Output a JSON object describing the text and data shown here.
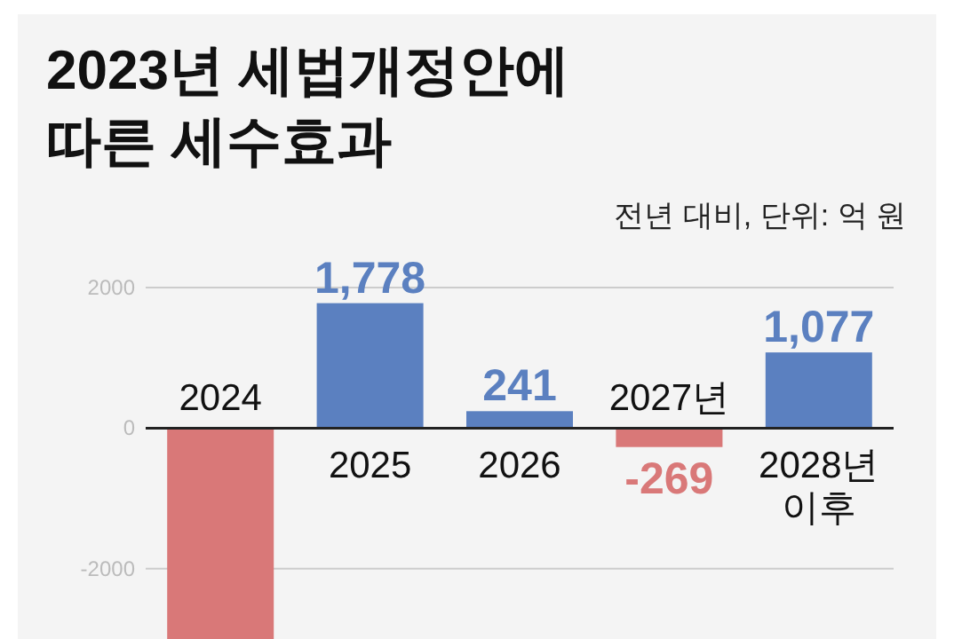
{
  "chart_data": {
    "type": "bar",
    "title": "2023년 세법개정안에\n따른 세수효과",
    "subtitle": "전년 대비, 단위: 억 원",
    "categories": [
      "2024",
      "2025",
      "2026",
      "2027년",
      "2028년\n이후"
    ],
    "values": [
      -3000,
      1778,
      241,
      -269,
      1077
    ],
    "colors": [
      "#d97878",
      "#5b80c0",
      "#5b80c0",
      "#d97878",
      "#5b80c0"
    ],
    "value_labels": [
      null,
      "1,778",
      "241",
      "-269",
      "1,077"
    ],
    "ylim": [
      -3000,
      2000
    ],
    "yticks": [
      -2000,
      0,
      2000
    ],
    "grid": "y"
  }
}
